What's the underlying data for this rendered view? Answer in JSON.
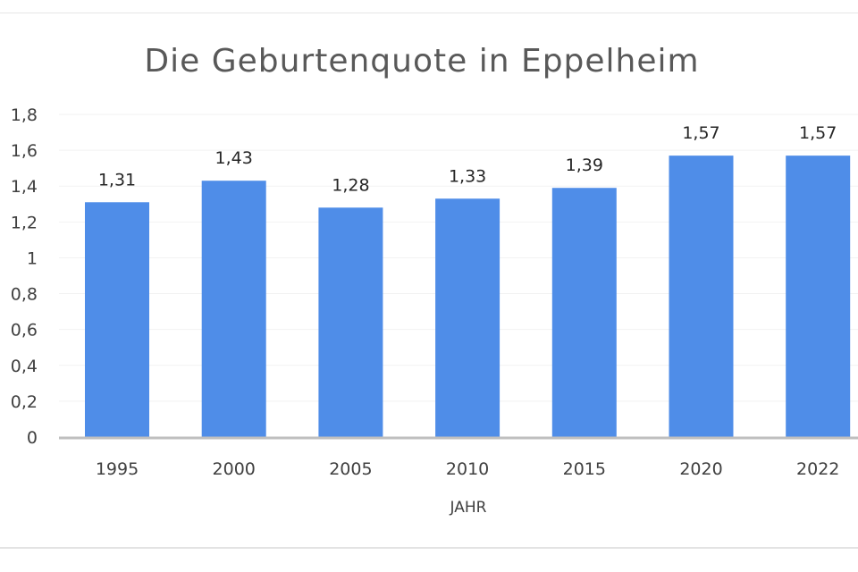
{
  "chart_data": {
    "type": "bar",
    "title": "Die Geburtenquote in Eppelheim",
    "xlabel": "JAHR",
    "ylabel": "",
    "categories": [
      "1995",
      "2000",
      "2005",
      "2010",
      "2015",
      "2020",
      "2022"
    ],
    "values": [
      1.31,
      1.43,
      1.28,
      1.33,
      1.39,
      1.57,
      1.57
    ],
    "value_labels": [
      "1,31",
      "1,43",
      "1,28",
      "1,33",
      "1,39",
      "1,57",
      "1,57"
    ],
    "ylim": [
      0,
      1.8
    ],
    "y_ticks": [
      0,
      0.2,
      0.4,
      0.6,
      0.8,
      1,
      1.2,
      1.4,
      1.6,
      1.8
    ],
    "y_tick_labels": [
      "0",
      "0,2",
      "0,4",
      "0,6",
      "0,8",
      "1",
      "1,2",
      "1,4",
      "1,6",
      "1,8"
    ],
    "grid": true,
    "legend": "none",
    "bar_color": "#4f8de8"
  }
}
